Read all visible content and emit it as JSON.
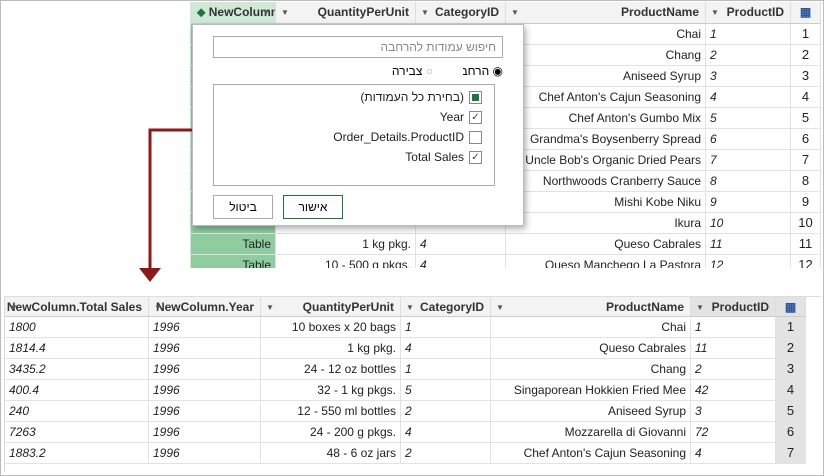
{
  "top_grid": {
    "headers": [
      "NewColumn",
      "QuantityPerUnit",
      "CategoryID",
      "ProductName",
      "ProductID"
    ],
    "rows": [
      [
        null,
        null,
        null,
        "Chai",
        "1",
        "1"
      ],
      [
        null,
        null,
        null,
        "Chang",
        "2",
        "2"
      ],
      [
        null,
        null,
        null,
        "Aniseed Syrup",
        "3",
        "3"
      ],
      [
        null,
        null,
        null,
        "Chef Anton's Cajun Seasoning",
        "4",
        "4"
      ],
      [
        null,
        null,
        null,
        "Chef Anton's Gumbo Mix",
        "5",
        "5"
      ],
      [
        null,
        null,
        null,
        "Grandma's Boysenberry Spread",
        "6",
        "6"
      ],
      [
        null,
        null,
        null,
        "Uncle Bob's Organic Dried Pears",
        "7",
        "7"
      ],
      [
        null,
        null,
        null,
        "Northwoods Cranberry Sauce",
        "8",
        "8"
      ],
      [
        null,
        null,
        null,
        "Mishi Kobe Niku",
        "9",
        "9"
      ],
      [
        null,
        null,
        null,
        "Ikura",
        "10",
        "10"
      ],
      [
        "Table",
        "1 kg pkg.",
        "4",
        "Queso Cabrales",
        "11",
        "11"
      ],
      [
        "Table",
        "10 - 500 g pkgs.",
        "4",
        "Queso Manchego La Pastora",
        "12",
        "12"
      ]
    ]
  },
  "dialog": {
    "search_placeholder": "חיפוש עמודות להרחבה",
    "radio_expand": "הרחבה",
    "radio_aggregate": "צבירה",
    "items": [
      {
        "label": "(בחירת כל העמודות)",
        "checked": "partial"
      },
      {
        "label": "Year",
        "checked": true
      },
      {
        "label": "Order_Details.ProductID",
        "checked": false
      },
      {
        "label": "Total Sales",
        "checked": true
      }
    ],
    "ok": "אישור",
    "cancel": "ביטול"
  },
  "bottom_grid": {
    "headers": [
      "NewColumn.Total Sales",
      "NewColumn.Year",
      "QuantityPerUnit",
      "CategoryID",
      "ProductName",
      "ProductID"
    ],
    "rows": [
      [
        "1800",
        "1996",
        "10 boxes x 20 bags",
        "1",
        "Chai",
        "1",
        "1"
      ],
      [
        "1814.4",
        "1996",
        "1 kg pkg.",
        "4",
        "Queso Cabrales",
        "11",
        "2"
      ],
      [
        "3435.2",
        "1996",
        "24 - 12 oz bottles",
        "1",
        "Chang",
        "2",
        "3"
      ],
      [
        "400.4",
        "1996",
        "32 - 1 kg pkgs.",
        "5",
        "Singaporean Hokkien Fried Mee",
        "42",
        "4"
      ],
      [
        "240",
        "1996",
        "12 - 550 ml bottles",
        "2",
        "Aniseed Syrup",
        "3",
        "5"
      ],
      [
        "7263",
        "1996",
        "24 - 200 g pkgs.",
        "4",
        "Mozzarella di Giovanni",
        "72",
        "6"
      ],
      [
        "1883.2",
        "1996",
        "48 - 6 oz jars",
        "2",
        "Chef Anton's Cajun Seasoning",
        "4",
        "7"
      ]
    ]
  }
}
